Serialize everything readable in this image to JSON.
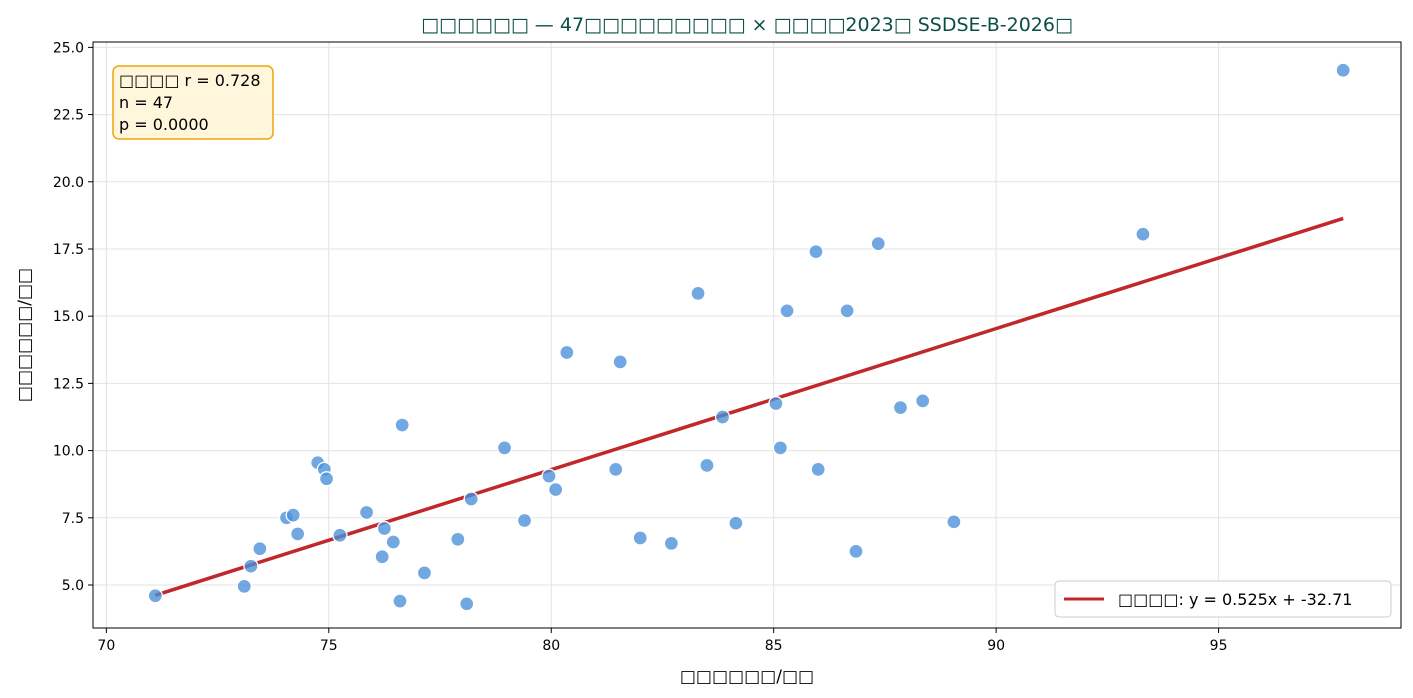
{
  "chart_data": {
    "type": "scatter",
    "title": "□□□□□□ — 47□□□□□□□□□ × □□□□2023□ SSDSE-B-2026□",
    "xlabel": "□□□□□□/□□",
    "ylabel": "□□□□□□/□□",
    "xlim": [
      69.7,
      99.1
    ],
    "ylim": [
      3.4,
      25.2
    ],
    "xticks": [
      70,
      75,
      80,
      85,
      90,
      95
    ],
    "yticks": [
      5.0,
      7.5,
      10.0,
      12.5,
      15.0,
      17.5,
      20.0,
      22.5,
      25.0
    ],
    "grid": true,
    "colors": {
      "points": "#4a90d9",
      "fit_line": "#c0282b",
      "annotation_fill": "#fff6dc",
      "annotation_border": "#f0a30a",
      "title": "#0b4f43"
    },
    "annotation": {
      "lines": [
        "□□□□ r = 0.728",
        "n = 47",
        "p = 0.0000"
      ]
    },
    "fit": {
      "slope": 0.525,
      "intercept": -32.71,
      "x_range": [
        71.1,
        97.8
      ]
    },
    "legend": {
      "position": "bottom-right",
      "entries": [
        "□□□□: y = 0.525x + -32.71"
      ]
    },
    "points": [
      {
        "x": 71.1,
        "y": 4.6
      },
      {
        "x": 73.1,
        "y": 4.95
      },
      {
        "x": 73.25,
        "y": 5.7
      },
      {
        "x": 73.45,
        "y": 6.35
      },
      {
        "x": 74.05,
        "y": 7.5
      },
      {
        "x": 74.2,
        "y": 7.6
      },
      {
        "x": 74.3,
        "y": 6.9
      },
      {
        "x": 74.75,
        "y": 9.55
      },
      {
        "x": 74.9,
        "y": 9.3
      },
      {
        "x": 74.95,
        "y": 8.95
      },
      {
        "x": 75.25,
        "y": 6.85
      },
      {
        "x": 75.85,
        "y": 7.7
      },
      {
        "x": 76.2,
        "y": 6.05
      },
      {
        "x": 76.25,
        "y": 7.1
      },
      {
        "x": 76.45,
        "y": 6.6
      },
      {
        "x": 76.6,
        "y": 4.4
      },
      {
        "x": 76.65,
        "y": 10.95
      },
      {
        "x": 77.15,
        "y": 5.45
      },
      {
        "x": 77.9,
        "y": 6.7
      },
      {
        "x": 78.1,
        "y": 4.3
      },
      {
        "x": 78.2,
        "y": 8.2
      },
      {
        "x": 78.95,
        "y": 10.1
      },
      {
        "x": 79.4,
        "y": 7.4
      },
      {
        "x": 79.95,
        "y": 9.05
      },
      {
        "x": 80.1,
        "y": 8.55
      },
      {
        "x": 80.35,
        "y": 13.65
      },
      {
        "x": 81.45,
        "y": 9.3
      },
      {
        "x": 81.55,
        "y": 13.3
      },
      {
        "x": 82.0,
        "y": 6.75
      },
      {
        "x": 82.7,
        "y": 6.55
      },
      {
        "x": 83.3,
        "y": 15.85
      },
      {
        "x": 83.5,
        "y": 9.45
      },
      {
        "x": 83.85,
        "y": 11.25
      },
      {
        "x": 84.15,
        "y": 7.3
      },
      {
        "x": 85.05,
        "y": 11.75
      },
      {
        "x": 85.15,
        "y": 10.1
      },
      {
        "x": 85.3,
        "y": 15.2
      },
      {
        "x": 85.95,
        "y": 17.4
      },
      {
        "x": 86.0,
        "y": 9.3
      },
      {
        "x": 86.65,
        "y": 15.2
      },
      {
        "x": 86.85,
        "y": 6.25
      },
      {
        "x": 87.35,
        "y": 17.7
      },
      {
        "x": 87.85,
        "y": 11.6
      },
      {
        "x": 88.35,
        "y": 11.85
      },
      {
        "x": 89.05,
        "y": 7.35
      },
      {
        "x": 93.3,
        "y": 18.05
      },
      {
        "x": 97.8,
        "y": 24.15
      }
    ]
  }
}
